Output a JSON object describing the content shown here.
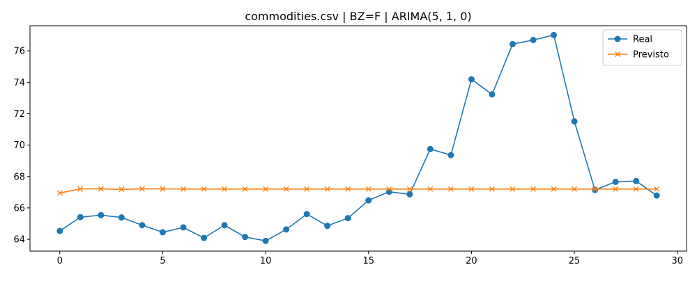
{
  "chart_data": {
    "type": "line",
    "title": "commodities.csv | BZ=F | ARIMA(5, 1, 0)",
    "xlabel": "",
    "ylabel": "",
    "xlim": [
      -1.45,
      30.45
    ],
    "ylim": [
      63.25,
      77.6
    ],
    "xticks": [
      0,
      5,
      10,
      15,
      20,
      25,
      30
    ],
    "yticks": [
      64,
      66,
      68,
      70,
      72,
      74,
      76
    ],
    "grid": false,
    "legend_position": "top-right",
    "x": [
      0,
      1,
      2,
      3,
      4,
      5,
      6,
      7,
      8,
      9,
      10,
      11,
      12,
      13,
      14,
      15,
      16,
      17,
      18,
      19,
      20,
      21,
      22,
      23,
      24,
      25,
      26,
      27,
      28,
      29
    ],
    "series": [
      {
        "name": "Real",
        "color": "#1f77b4",
        "marker": "circle",
        "values": [
          64.53,
          65.41,
          65.54,
          65.39,
          64.9,
          64.45,
          64.76,
          64.09,
          64.9,
          64.15,
          63.9,
          64.63,
          65.61,
          64.86,
          65.35,
          66.48,
          67.03,
          66.87,
          69.75,
          69.36,
          74.19,
          73.23,
          76.43,
          76.69,
          77.01,
          71.51,
          67.14,
          67.66,
          67.71,
          66.79
        ]
      },
      {
        "name": "Previsto",
        "color": "#ff7f0e",
        "marker": "x",
        "values": [
          66.95,
          67.21,
          67.21,
          67.18,
          67.21,
          67.21,
          67.2,
          67.2,
          67.2,
          67.2,
          67.2,
          67.2,
          67.2,
          67.2,
          67.2,
          67.2,
          67.2,
          67.2,
          67.2,
          67.2,
          67.2,
          67.2,
          67.2,
          67.2,
          67.2,
          67.2,
          67.2,
          67.2,
          67.2,
          67.2
        ]
      }
    ]
  }
}
